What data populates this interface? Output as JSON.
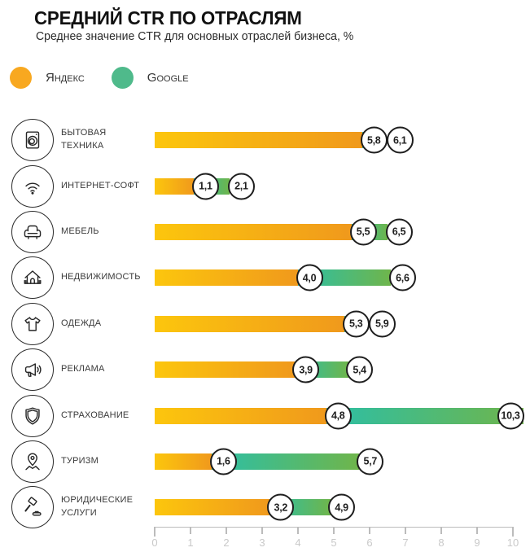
{
  "page": {
    "title": "СРЕДНИЙ CTR ПО ОТРАСЛЯМ",
    "subtitle": "Среднее значение CTR для основных отраслей бизнеса, %"
  },
  "legend": {
    "items": [
      {
        "label": "Яндекс",
        "color": "#F8A820"
      },
      {
        "label": "Google",
        "color": "#4FBA8B"
      }
    ]
  },
  "chart_data": {
    "type": "bar",
    "orientation": "horizontal",
    "title": "СРЕДНИЙ CTR ПО ОТРАСЛЯМ",
    "subtitle": "Среднее значение CTR для основных отраслей бизнеса, %",
    "unit": "%",
    "xlim": [
      0,
      10
    ],
    "x_tick_labels": [
      "0",
      "1",
      "2",
      "3",
      "4",
      "5",
      "6",
      "7",
      "8",
      "9",
      "10"
    ],
    "grid": false,
    "legend_position": "top-left",
    "series_names": [
      "Яндекс",
      "Google"
    ],
    "colors": {
      "yandex_gradient_start": "#FCC60D",
      "yandex_gradient_end": "#F0991C",
      "google_gradient_start": "#2CBFA6",
      "google_gradient_end": "#6FB54B"
    },
    "rows": [
      {
        "label": "БЫТОВАЯ ТЕХНИКА",
        "icon": "washing-machine",
        "yandex": 5.8,
        "google": 6.1,
        "yandex_display": "5,8",
        "google_display": "6,1"
      },
      {
        "label": "ИНТЕРНЕТ-СОФТ",
        "icon": "wifi",
        "yandex": 1.1,
        "google": 2.1,
        "yandex_display": "1,1",
        "google_display": "2,1"
      },
      {
        "label": "МЕБЕЛЬ",
        "icon": "armchair",
        "yandex": 5.5,
        "google": 6.5,
        "yandex_display": "5,5",
        "google_display": "6,5"
      },
      {
        "label": "НЕДВИЖИМОСТЬ",
        "icon": "house",
        "yandex": 4.0,
        "google": 6.6,
        "yandex_display": "4,0",
        "google_display": "6,6"
      },
      {
        "label": "ОДЕЖДА",
        "icon": "t-shirt",
        "yandex": 5.3,
        "google": 5.9,
        "yandex_display": "5,3",
        "google_display": "5,9"
      },
      {
        "label": "РЕКЛАМА",
        "icon": "megaphone",
        "yandex": 3.9,
        "google": 5.4,
        "yandex_display": "3,9",
        "google_display": "5,4"
      },
      {
        "label": "СТРАХОВАНИЕ",
        "icon": "shield",
        "yandex": 4.8,
        "google": 10.3,
        "yandex_display": "4,8",
        "google_display": "10,3"
      },
      {
        "label": "ТУРИЗМ",
        "icon": "map-pin",
        "yandex": 1.6,
        "google": 5.7,
        "yandex_display": "1,6",
        "google_display": "5,7"
      },
      {
        "label": "ЮРИДИЧЕСКИЕ УСЛУГИ",
        "icon": "gavel",
        "yandex": 3.2,
        "google": 4.9,
        "yandex_display": "3,2",
        "google_display": "4,9"
      }
    ]
  }
}
